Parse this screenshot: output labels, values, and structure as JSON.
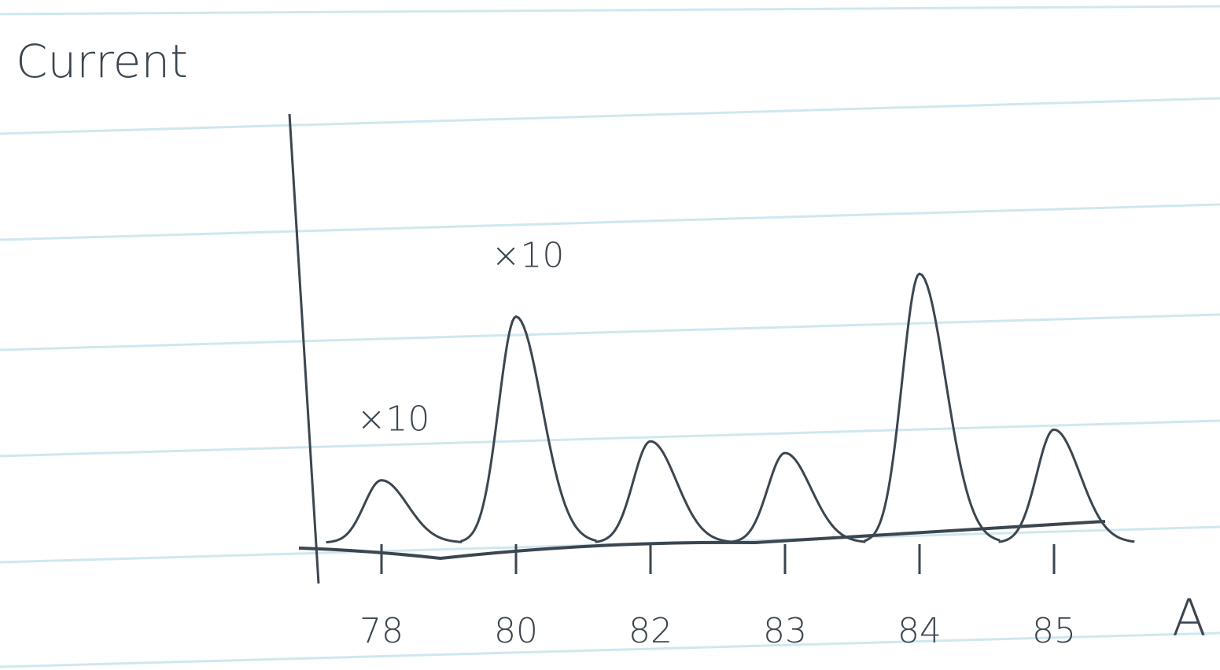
{
  "chart_data": {
    "type": "peak",
    "y_label": "Current",
    "x_label": "A",
    "categories": [
      "78",
      "80",
      "82",
      "83",
      "84",
      "85"
    ],
    "values": [
      80,
      290,
      130,
      115,
      345,
      145
    ],
    "ylim": [
      0,
      550
    ],
    "color": "#3b4650",
    "annotations": [
      {
        "text": "×10",
        "category": "78"
      },
      {
        "text": "×10",
        "category": "80"
      }
    ]
  }
}
